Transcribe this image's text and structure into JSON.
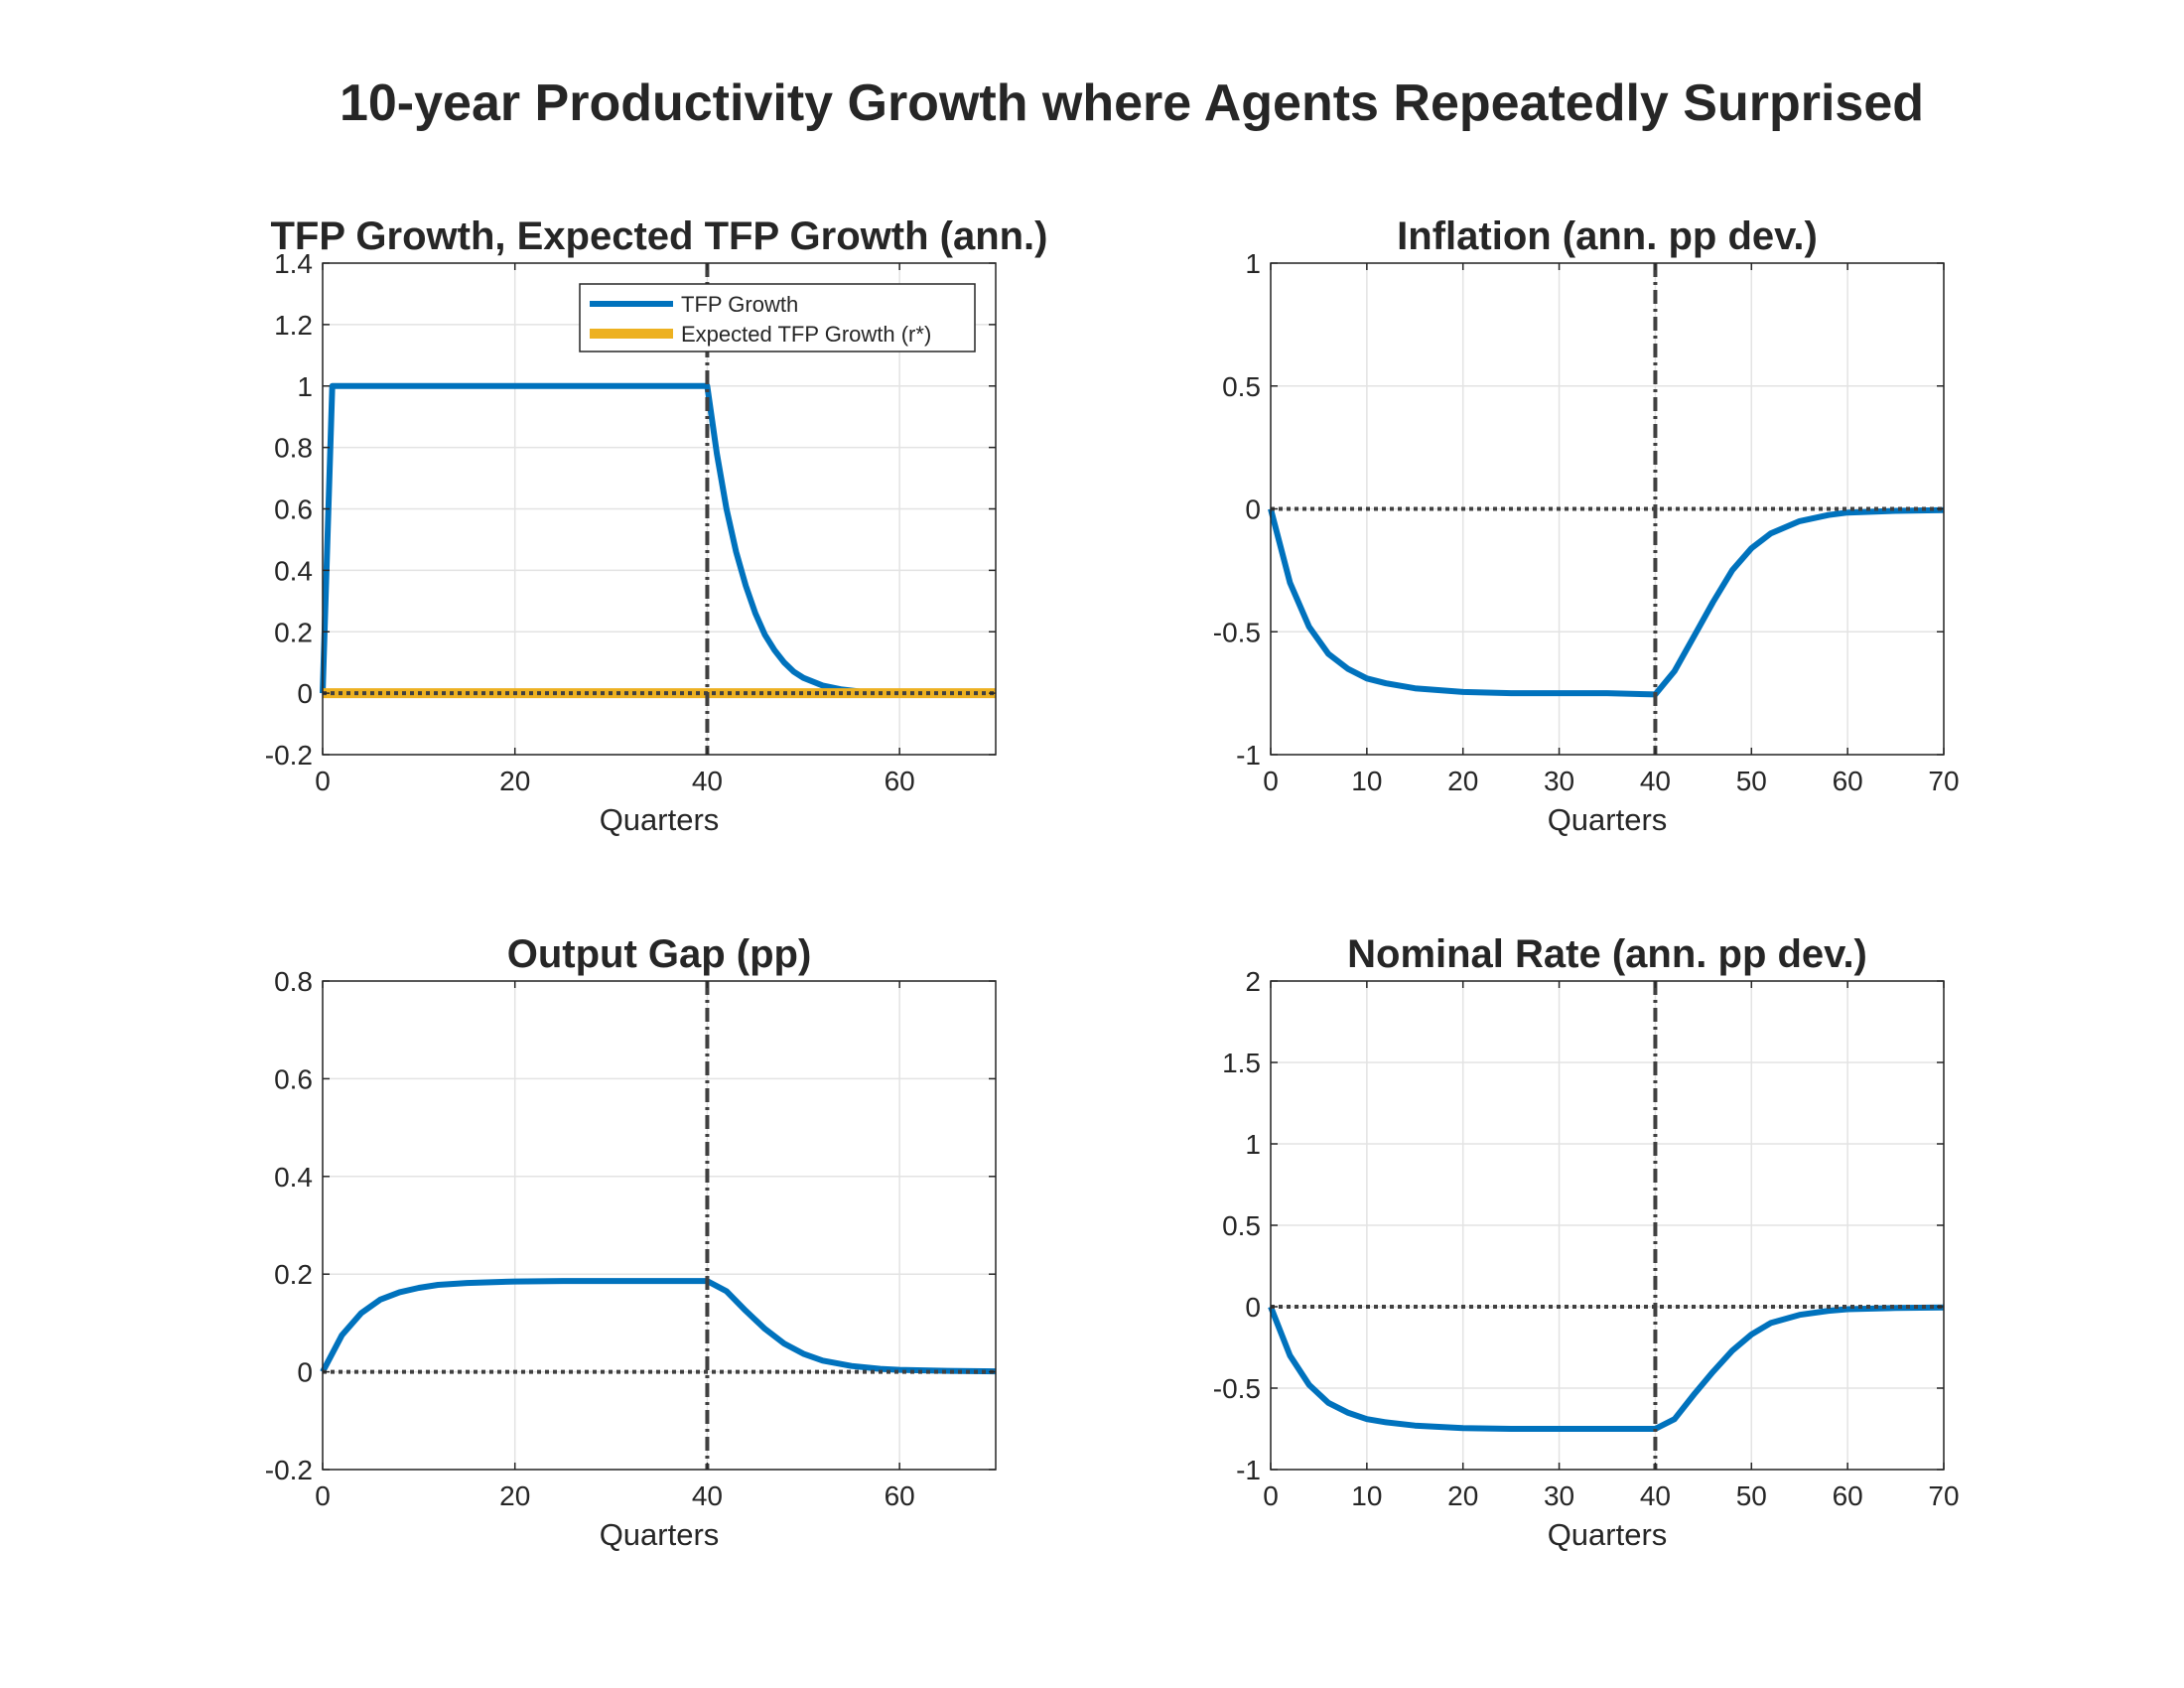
{
  "figure": {
    "title": "10-year Productivity Growth where Agents Repeatedly Surprised"
  },
  "colors": {
    "primary": "#0072BD",
    "secondary": "#EDB120",
    "reference": "#404040",
    "grid": "#e3e3e3",
    "text": "#262626"
  },
  "chart_data": [
    {
      "type": "line",
      "title": "TFP Growth, Expected TFP Growth (ann.)",
      "xlabel": "Quarters",
      "ylabel": "",
      "xlim": [
        0,
        70
      ],
      "ylim": [
        -0.2,
        1.4
      ],
      "xticks": [
        0,
        20,
        40,
        60
      ],
      "yticks": [
        -0.2,
        0,
        0.2,
        0.4,
        0.6,
        0.8,
        1,
        1.2,
        1.4
      ],
      "xtick_labels": [
        "0",
        "20",
        "40",
        "60"
      ],
      "ytick_labels": [
        "-0.2",
        "0",
        "0.2",
        "0.4",
        "0.6",
        "0.8",
        "1",
        "1.2",
        "1.4"
      ],
      "grid": true,
      "legend": "top-right",
      "vline_x": 40,
      "hline_y": 0,
      "series": [
        {
          "name": "TFP Growth",
          "color": "#0072BD",
          "x": [
            0,
            1,
            40,
            41,
            42,
            43,
            44,
            45,
            46,
            47,
            48,
            49,
            50,
            52,
            54,
            56,
            60,
            70
          ],
          "y": [
            0,
            1,
            1,
            0.78,
            0.6,
            0.46,
            0.35,
            0.26,
            0.19,
            0.14,
            0.1,
            0.07,
            0.05,
            0.025,
            0.012,
            0.005,
            0.001,
            0
          ]
        },
        {
          "name": "Expected TFP Growth (r*)",
          "color": "#EDB120",
          "x": [
            0,
            70
          ],
          "y": [
            0,
            0
          ]
        }
      ]
    },
    {
      "type": "line",
      "title": "Inflation (ann. pp dev.)",
      "xlabel": "Quarters",
      "ylabel": "",
      "xlim": [
        0,
        70
      ],
      "ylim": [
        -1,
        1
      ],
      "xticks": [
        0,
        10,
        20,
        30,
        40,
        50,
        60,
        70
      ],
      "yticks": [
        -1,
        -0.5,
        0,
        0.5,
        1
      ],
      "xtick_labels": [
        "0",
        "10",
        "20",
        "30",
        "40",
        "50",
        "60",
        "70"
      ],
      "ytick_labels": [
        "-1",
        "-0.5",
        "0",
        "0.5",
        "1"
      ],
      "grid": true,
      "vline_x": 40,
      "hline_y": 0,
      "series": [
        {
          "color": "#0072BD",
          "x": [
            0,
            2,
            4,
            6,
            8,
            10,
            12,
            15,
            20,
            25,
            30,
            35,
            40,
            42,
            44,
            46,
            48,
            50,
            52,
            55,
            58,
            60,
            65,
            70
          ],
          "y": [
            0,
            -0.3,
            -0.48,
            -0.59,
            -0.65,
            -0.69,
            -0.71,
            -0.73,
            -0.745,
            -0.75,
            -0.75,
            -0.75,
            -0.755,
            -0.66,
            -0.52,
            -0.38,
            -0.25,
            -0.16,
            -0.1,
            -0.05,
            -0.025,
            -0.015,
            -0.008,
            -0.005
          ]
        }
      ]
    },
    {
      "type": "line",
      "title": "Output Gap (pp)",
      "xlabel": "Quarters",
      "ylabel": "",
      "xlim": [
        0,
        70
      ],
      "ylim": [
        -0.2,
        0.8
      ],
      "xticks": [
        0,
        20,
        40,
        60
      ],
      "yticks": [
        -0.2,
        0,
        0.2,
        0.4,
        0.6,
        0.8
      ],
      "xtick_labels": [
        "0",
        "20",
        "40",
        "60"
      ],
      "ytick_labels": [
        "-0.2",
        "0",
        "0.2",
        "0.4",
        "0.6",
        "0.8"
      ],
      "grid": true,
      "vline_x": 40,
      "hline_y": 0,
      "series": [
        {
          "color": "#0072BD",
          "x": [
            0,
            2,
            4,
            6,
            8,
            10,
            12,
            15,
            20,
            25,
            30,
            35,
            40,
            42,
            44,
            46,
            48,
            50,
            52,
            55,
            58,
            60,
            65,
            70
          ],
          "y": [
            0,
            0.075,
            0.12,
            0.148,
            0.163,
            0.172,
            0.178,
            0.182,
            0.185,
            0.186,
            0.186,
            0.186,
            0.186,
            0.165,
            0.125,
            0.088,
            0.058,
            0.037,
            0.023,
            0.012,
            0.006,
            0.004,
            0.002,
            0.001
          ]
        }
      ]
    },
    {
      "type": "line",
      "title": "Nominal Rate (ann. pp dev.)",
      "xlabel": "Quarters",
      "ylabel": "",
      "xlim": [
        0,
        70
      ],
      "ylim": [
        -1,
        2
      ],
      "xticks": [
        0,
        10,
        20,
        30,
        40,
        50,
        60,
        70
      ],
      "yticks": [
        -1,
        -0.5,
        0,
        0.5,
        1,
        1.5,
        2
      ],
      "xtick_labels": [
        "0",
        "10",
        "20",
        "30",
        "40",
        "50",
        "60",
        "70"
      ],
      "ytick_labels": [
        "-1",
        "-0.5",
        "0",
        "0.5",
        "1",
        "1.5",
        "2"
      ],
      "grid": true,
      "vline_x": 40,
      "hline_y": 0,
      "series": [
        {
          "color": "#0072BD",
          "x": [
            0,
            2,
            4,
            6,
            8,
            10,
            12,
            15,
            20,
            25,
            30,
            35,
            40,
            42,
            44,
            46,
            48,
            50,
            52,
            55,
            58,
            60,
            65,
            70
          ],
          "y": [
            0,
            -0.3,
            -0.48,
            -0.59,
            -0.65,
            -0.69,
            -0.71,
            -0.73,
            -0.745,
            -0.75,
            -0.75,
            -0.75,
            -0.75,
            -0.69,
            -0.54,
            -0.4,
            -0.27,
            -0.17,
            -0.1,
            -0.05,
            -0.025,
            -0.015,
            -0.008,
            -0.005
          ]
        }
      ]
    }
  ]
}
